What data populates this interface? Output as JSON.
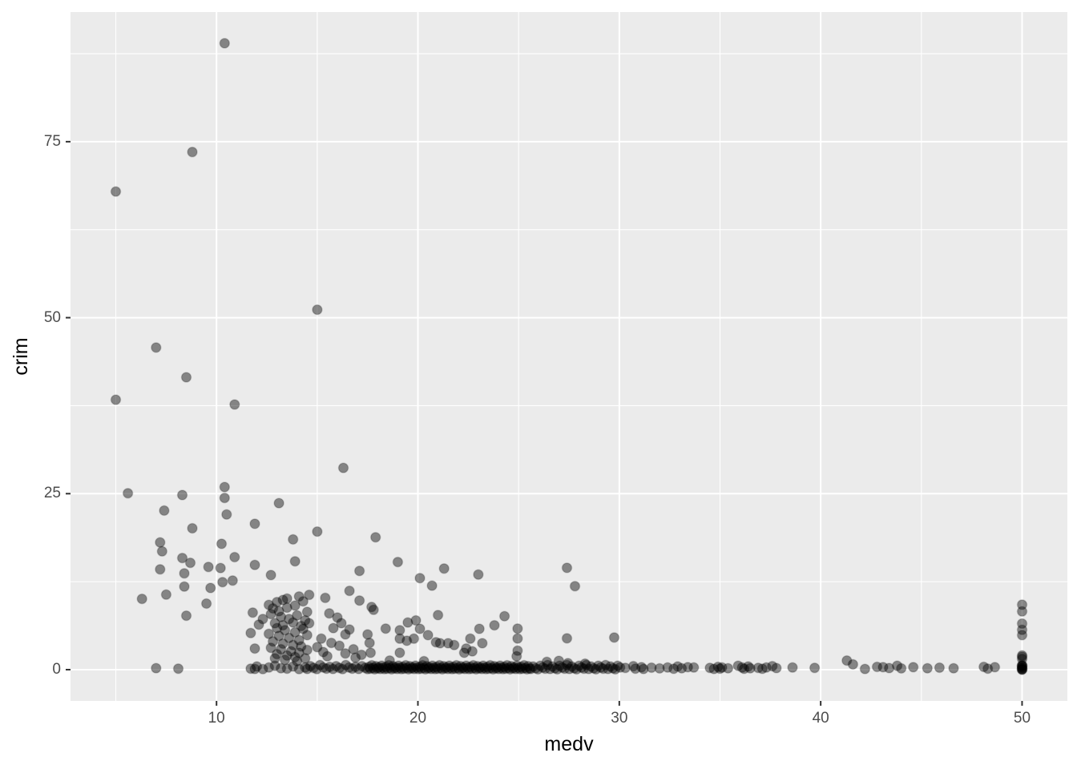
{
  "chart_data": {
    "type": "scatter",
    "title": "",
    "xlabel": "medv",
    "ylabel": "crim",
    "legend": "none",
    "grid": "major+minor",
    "xlim": [
      2.75,
      52.25
    ],
    "ylim": [
      -4.44,
      93.42
    ],
    "x_ticks": [
      10,
      20,
      30,
      40,
      50
    ],
    "y_ticks": [
      0,
      25,
      50,
      75
    ],
    "x_minor_ticks": [
      5,
      15,
      25,
      35,
      45
    ],
    "y_minor_ticks": [
      12.5,
      37.5,
      62.5,
      87.5
    ],
    "colors": {
      "panel_background": "#EBEBEB",
      "grid": "#FFFFFF",
      "tick_mark": "#333333",
      "tick_label": "#4D4D4D",
      "axis_title": "#000000",
      "point_fill": "rgba(0,0,0,0.44)",
      "point_stroke": "rgba(0,0,0,0.16)"
    },
    "point_radius": 6,
    "points": [
      [
        10.4,
        88.98
      ],
      [
        8.8,
        73.53
      ],
      [
        5,
        67.92
      ],
      [
        15,
        51.14
      ],
      [
        7,
        45.75
      ],
      [
        8.5,
        41.53
      ],
      [
        5,
        38.35
      ],
      [
        10.9,
        37.66
      ],
      [
        16.3,
        28.66
      ],
      [
        10.4,
        25.94
      ],
      [
        5.6,
        25.05
      ],
      [
        8.3,
        24.8
      ],
      [
        10.4,
        24.39
      ],
      [
        13.1,
        23.65
      ],
      [
        7.4,
        22.6
      ],
      [
        10.5,
        22.05
      ],
      [
        11.9,
        20.72
      ],
      [
        8.8,
        20.08
      ],
      [
        15,
        19.61
      ],
      [
        17.9,
        18.81
      ],
      [
        13.8,
        18.5
      ],
      [
        7.2,
        18.08
      ],
      [
        10.25,
        17.87
      ],
      [
        7.3,
        16.81
      ],
      [
        10.9,
        15.98
      ],
      [
        8.3,
        15.86
      ],
      [
        19,
        15.29
      ],
      [
        13.9,
        15.39
      ],
      [
        8.7,
        15.18
      ],
      [
        11.9,
        14.88
      ],
      [
        9.6,
        14.59
      ],
      [
        10.2,
        14.44
      ],
      [
        7.2,
        14.24
      ],
      [
        17.1,
        14.03
      ],
      [
        27.4,
        14.46
      ],
      [
        21.3,
        14.36
      ],
      [
        20.1,
        13.0
      ],
      [
        23,
        13.52
      ],
      [
        12.7,
        13.44
      ],
      [
        8.4,
        13.67
      ],
      [
        20.7,
        11.93
      ],
      [
        27.8,
        11.85
      ],
      [
        16.6,
        11.2
      ],
      [
        10.8,
        12.65
      ],
      [
        10.3,
        12.43
      ],
      [
        8.4,
        11.81
      ],
      [
        9.7,
        11.61
      ],
      [
        14.6,
        10.63
      ],
      [
        15.4,
        10.19
      ],
      [
        17.1,
        9.82
      ],
      [
        7.5,
        10.66
      ],
      [
        6.3,
        10.06
      ],
      [
        9.5,
        9.39
      ],
      [
        8.5,
        7.67
      ],
      [
        12.6,
        9.2
      ],
      [
        13,
        9.6
      ],
      [
        13.3,
        9.9
      ],
      [
        13.5,
        10.1
      ],
      [
        14.1,
        10.4
      ],
      [
        12.8,
        8.7
      ],
      [
        13.1,
        8.3
      ],
      [
        13.5,
        8.8
      ],
      [
        13.9,
        9.1
      ],
      [
        14.3,
        9.7
      ],
      [
        14.5,
        8.2
      ],
      [
        12.7,
        7.9
      ],
      [
        13.2,
        7.5
      ],
      [
        13.6,
        7.2
      ],
      [
        14,
        7.7
      ],
      [
        14.4,
        7
      ],
      [
        12.9,
        6.6
      ],
      [
        13.3,
        6.3
      ],
      [
        13.8,
        6.7
      ],
      [
        14.2,
        6.2
      ],
      [
        14.6,
        6.6
      ],
      [
        13,
        5.9
      ],
      [
        13.4,
        5.6
      ],
      [
        13.9,
        5.3
      ],
      [
        14.3,
        5.8
      ],
      [
        12.6,
        5.1
      ],
      [
        13.1,
        4.8
      ],
      [
        13.6,
        4.5
      ],
      [
        14.1,
        4.2
      ],
      [
        14.5,
        4.9
      ],
      [
        12.8,
        4
      ],
      [
        13.3,
        3.7
      ],
      [
        13.8,
        3.5
      ],
      [
        14.2,
        3.3
      ],
      [
        12.7,
        3.1
      ],
      [
        13.2,
        2.9
      ],
      [
        13.7,
        2.6
      ],
      [
        14.1,
        2.4
      ],
      [
        14.5,
        2.8
      ],
      [
        13,
        2.2
      ],
      [
        13.5,
        2
      ],
      [
        13.9,
        1.8
      ],
      [
        12.9,
        1.6
      ],
      [
        13.4,
        1.4
      ],
      [
        14,
        1.2
      ],
      [
        14.4,
        1.6
      ],
      [
        11.9,
        3
      ],
      [
        11.7,
        5.2
      ],
      [
        12.1,
        6.4
      ],
      [
        12.3,
        7.2
      ],
      [
        11.8,
        8.1
      ],
      [
        15,
        3.2
      ],
      [
        15.3,
        2.5
      ],
      [
        15.6,
        8
      ],
      [
        16,
        7.4
      ],
      [
        16.2,
        6.6
      ],
      [
        15.8,
        5.9
      ],
      [
        16.4,
        5
      ],
      [
        16.6,
        5.7
      ],
      [
        15.2,
        4.4
      ],
      [
        15.7,
        3.8
      ],
      [
        16.1,
        3.4
      ],
      [
        16.8,
        2.9
      ],
      [
        16.4,
        2.3
      ],
      [
        15.5,
        1.9
      ],
      [
        16.9,
        1.7
      ],
      [
        17.2,
        2.1
      ],
      [
        17.5,
        5
      ],
      [
        17.8,
        8.5
      ],
      [
        17.7,
        8.9
      ],
      [
        18.4,
        5.84
      ],
      [
        19.1,
        5.6
      ],
      [
        19.5,
        6.7
      ],
      [
        19.9,
        7
      ],
      [
        20.1,
        5.8
      ],
      [
        20.5,
        4.9
      ],
      [
        19.1,
        4.4
      ],
      [
        19.1,
        2.4
      ],
      [
        19.45,
        4.1
      ],
      [
        19.8,
        4.4
      ],
      [
        20.9,
        3.9
      ],
      [
        21.1,
        3.75
      ],
      [
        21.5,
        3.75
      ],
      [
        21.8,
        3.5
      ],
      [
        22.4,
        3
      ],
      [
        22.7,
        2.6
      ],
      [
        22.3,
        2.4
      ],
      [
        22.6,
        4.4
      ],
      [
        23.05,
        5.8
      ],
      [
        23.2,
        3.75
      ],
      [
        21,
        7.75
      ],
      [
        24.3,
        7.6
      ],
      [
        23.8,
        6.3
      ],
      [
        24.95,
        5.84
      ],
      [
        24.95,
        4.42
      ],
      [
        24.95,
        2.7
      ],
      [
        24.9,
        1.9
      ],
      [
        17.6,
        3.8
      ],
      [
        17.65,
        2.4
      ],
      [
        18.6,
        1.3
      ],
      [
        20.3,
        1.2
      ],
      [
        27.4,
        4.45
      ],
      [
        29.75,
        4.56
      ],
      [
        27,
        1.25
      ],
      [
        27.45,
        0.92
      ],
      [
        26.4,
        1.1
      ],
      [
        28.3,
        0.85
      ],
      [
        41.3,
        1.3
      ],
      [
        41.6,
        0.75
      ],
      [
        7,
        0.21
      ],
      [
        8.1,
        0.13
      ],
      [
        11.9,
        0.1
      ],
      [
        33.7,
        0.3
      ],
      [
        34.5,
        0.25
      ],
      [
        34.7,
        0.1
      ],
      [
        34.9,
        0.4
      ],
      [
        35,
        0.15
      ],
      [
        35.1,
        0.3
      ],
      [
        35.4,
        0.2
      ],
      [
        35.9,
        0.55
      ],
      [
        36.1,
        0.3
      ],
      [
        36.2,
        0.12
      ],
      [
        36.4,
        0.45
      ],
      [
        36.5,
        0.2
      ],
      [
        36.9,
        0.25
      ],
      [
        37.1,
        0.12
      ],
      [
        37.3,
        0.3
      ],
      [
        37.6,
        0.5
      ],
      [
        37.8,
        0.22
      ],
      [
        38.6,
        0.3
      ],
      [
        39.7,
        0.25
      ],
      [
        42.2,
        0.1
      ],
      [
        42.8,
        0.4
      ],
      [
        43.1,
        0.35
      ],
      [
        43.4,
        0.22
      ],
      [
        43.8,
        0.55
      ],
      [
        44,
        0.18
      ],
      [
        44.6,
        0.35
      ],
      [
        45.3,
        0.2
      ],
      [
        45.9,
        0.28
      ],
      [
        46.6,
        0.2
      ],
      [
        48.1,
        0.4
      ],
      [
        48.3,
        0.15
      ],
      [
        48.65,
        0.35
      ],
      [
        30.3,
        0.25
      ],
      [
        30.7,
        0.5
      ],
      [
        30.8,
        0.15
      ],
      [
        31.1,
        0.35
      ],
      [
        31.2,
        0.1
      ],
      [
        31.6,
        0.28
      ],
      [
        32,
        0.18
      ],
      [
        32.4,
        0.3
      ],
      [
        32.7,
        0.12
      ],
      [
        32.9,
        0.45
      ],
      [
        33.1,
        0.2
      ],
      [
        33.4,
        0.35
      ],
      [
        50,
        9.23
      ],
      [
        50,
        8.27
      ],
      [
        50,
        6.54
      ],
      [
        50,
        5.67
      ],
      [
        50,
        4.9
      ],
      [
        50,
        2.01
      ],
      [
        50,
        1.83
      ],
      [
        50,
        1.52
      ],
      [
        50,
        0.61
      ],
      [
        50,
        0.55
      ],
      [
        50,
        0.53
      ],
      [
        50,
        0.33
      ],
      [
        50,
        0.22
      ],
      [
        50,
        0.06
      ],
      [
        50,
        0.02
      ],
      [
        50,
        0.01
      ]
    ],
    "dense_runs": [
      {
        "from": 11.7,
        "to": 14.4,
        "step": 0.3,
        "crim_cycle": [
          0.15,
          0.45,
          0.08,
          0.3,
          0.55,
          0.2
        ]
      },
      {
        "from": 14.5,
        "to": 17.45,
        "step": 0.16,
        "crim_cycle": [
          0.1,
          0.5,
          0.25,
          0.08,
          0.65,
          0.3,
          0.15,
          0.4
        ]
      },
      {
        "from": 17.5,
        "to": 25.55,
        "step": 0.07,
        "crim_cycle": [
          0.08,
          0.4,
          0.15,
          0.62,
          0.25,
          0.05,
          0.5,
          0.18,
          0.33,
          0.1,
          0.57,
          0.28
        ]
      },
      {
        "from": 25.6,
        "to": 30.05,
        "step": 0.12,
        "crim_cycle": [
          0.1,
          0.45,
          0.2,
          0.06,
          0.55,
          0.3,
          0.14,
          0.65
        ]
      }
    ]
  },
  "layout_labels": {
    "x_tick_labels": [
      "10",
      "20",
      "30",
      "40",
      "50"
    ],
    "y_tick_labels": [
      "0",
      "25",
      "50",
      "75"
    ]
  }
}
